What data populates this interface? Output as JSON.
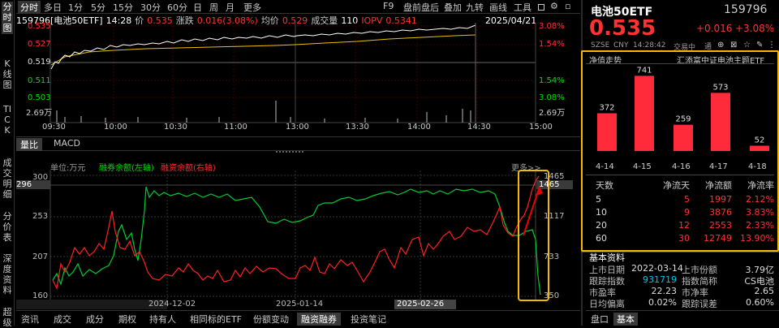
{
  "sidebar": [
    "分时图",
    "K线图",
    "TICK",
    "成交明细",
    "分价表",
    "深度资料",
    "超级"
  ],
  "top_tabs": [
    "分时",
    "多日",
    "1分",
    "5分",
    "15分",
    "30分",
    "60分",
    "日",
    "周",
    "月",
    "更多"
  ],
  "top_right": [
    "F9",
    "盘前盘后",
    "叠加",
    "九转",
    "画线",
    "工具"
  ],
  "info": {
    "name": "159796[电池50ETF]",
    "time": "14:28",
    "price_label": "价",
    "price": "0.535",
    "chg_label": "涨跌",
    "chg": "0.016(3.08%)",
    "avg_label": "均价",
    "avg": "0.529",
    "vol_label": "成交量",
    "vol": "110",
    "iopv_label": "IOPV",
    "iopv": "0.5341",
    "date": "2025/04/21"
  },
  "intraday_left": [
    "0.535",
    "0.527",
    "0.519",
    "0.511",
    "0.503",
    "2.69万",
    "2.69万"
  ],
  "intraday_right": [
    "3.08%",
    "1.54%",
    "1.54%",
    "3.08%",
    "2.69万"
  ],
  "time_axis": [
    "09:30",
    "10:00",
    "10:30",
    "11:00",
    "13:00",
    "13:30",
    "14:00",
    "14:30",
    "15:00"
  ],
  "sub_tabs": [
    "量比",
    "MACD"
  ],
  "margin": {
    "unit": "单位:万元",
    "legend_left": "融券余额(左轴)",
    "legend_right": "融资余额(右轴)",
    "more": "更多>>",
    "left_axis": [
      "300",
      "253",
      "207",
      "160"
    ],
    "right_axis": [
      "1465",
      "1117",
      "733",
      "350"
    ],
    "current_left": "296",
    "dates": [
      "2024-12-02",
      "2025-01-14",
      "2025-02-26"
    ]
  },
  "bottom_tabs": [
    "资讯",
    "成交",
    "成分",
    "期权",
    "持有人",
    "相同标的ETF",
    "份额变动",
    "融资融券",
    "投资笔记"
  ],
  "quote": {
    "name": "电池50ETF",
    "code": "159796",
    "price": "0.535",
    "chg": "+0.016",
    "pct": "+3.08%",
    "market": "SZSE",
    "currency": "CNY",
    "time": "14:28:42",
    "status": "交易中",
    "badge": "通"
  },
  "flow": {
    "title": "净值走势",
    "subtitle": "汇添富中证电池主题ETF",
    "dates": [
      "4-14",
      "4-15",
      "4-16",
      "4-17",
      "4-18"
    ],
    "values": [
      372,
      741,
      259,
      573,
      52
    ],
    "headers": [
      "天数",
      "净流天",
      "净流额",
      "净流率"
    ],
    "rows": [
      [
        "5",
        "5",
        "1997",
        "2.12%"
      ],
      [
        "10",
        "9",
        "3876",
        "3.83%"
      ],
      [
        "20",
        "12",
        "2553",
        "2.33%"
      ],
      [
        "60",
        "30",
        "12749",
        "13.90%"
      ]
    ]
  },
  "basic": {
    "title": "基本资料",
    "rows": [
      [
        "上市日期",
        "2022-03-14",
        "上市份额",
        "3.79亿"
      ],
      [
        "跟踪指数",
        "931719",
        "指数简称",
        "CS电池"
      ],
      [
        "市盈率",
        "22.23",
        "市净率",
        "2.65"
      ],
      [
        "日均偏离",
        "0.02%",
        "跟踪误差",
        "0.60%"
      ]
    ]
  },
  "rp_tabs": [
    "盘口",
    "基本"
  ],
  "colors": {
    "up": "#ff3232",
    "down": "#00e000",
    "highlight": "#f5b800"
  }
}
